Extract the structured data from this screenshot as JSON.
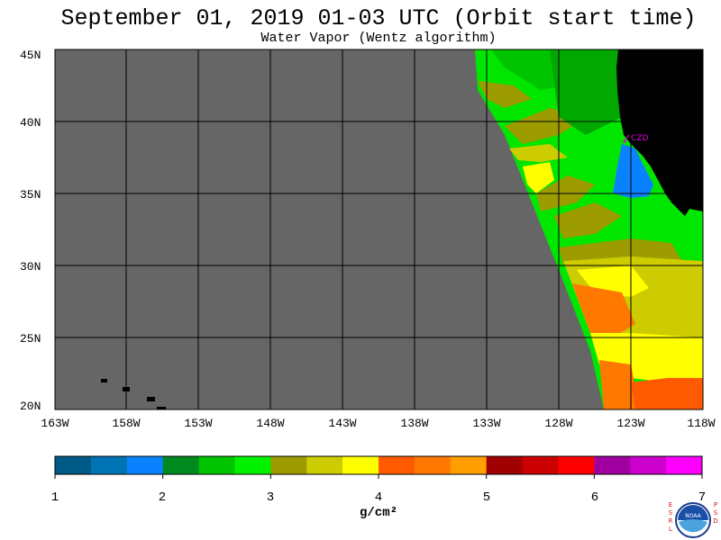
{
  "title": "September 01, 2019  01-03 UTC  (Orbit start time)",
  "subtitle": "Water Vapor (Wentz algorithm)",
  "map": {
    "lon_labels": [
      "163W",
      "158W",
      "153W",
      "148W",
      "143W",
      "138W",
      "133W",
      "128W",
      "123W",
      "118W"
    ],
    "lat_labels": [
      "45N",
      "40N",
      "35N",
      "30N",
      "25N",
      "20N"
    ],
    "station_label": "CZD",
    "colors": {
      "ocean_missing": "#666666",
      "land": "#000000",
      "station": "#dd00dd"
    }
  },
  "colorbar": {
    "tick_labels": [
      "1",
      "2",
      "3",
      "4",
      "5",
      "6",
      "7"
    ],
    "units": "g/cm²",
    "colors": [
      "#005a87",
      "#0073b5",
      "#0a82ff",
      "#00891f",
      "#00c400",
      "#00f200",
      "#9c9c00",
      "#cccc00",
      "#ffff00",
      "#ff5a00",
      "#ff7800",
      "#ff9e00",
      "#a00000",
      "#cc0000",
      "#ff0000",
      "#a000a0",
      "#cc00cc",
      "#ff00ff"
    ]
  },
  "logo": {
    "left_letters": "ESRL",
    "right_letters": "PSD",
    "center_text": "NOAA"
  }
}
